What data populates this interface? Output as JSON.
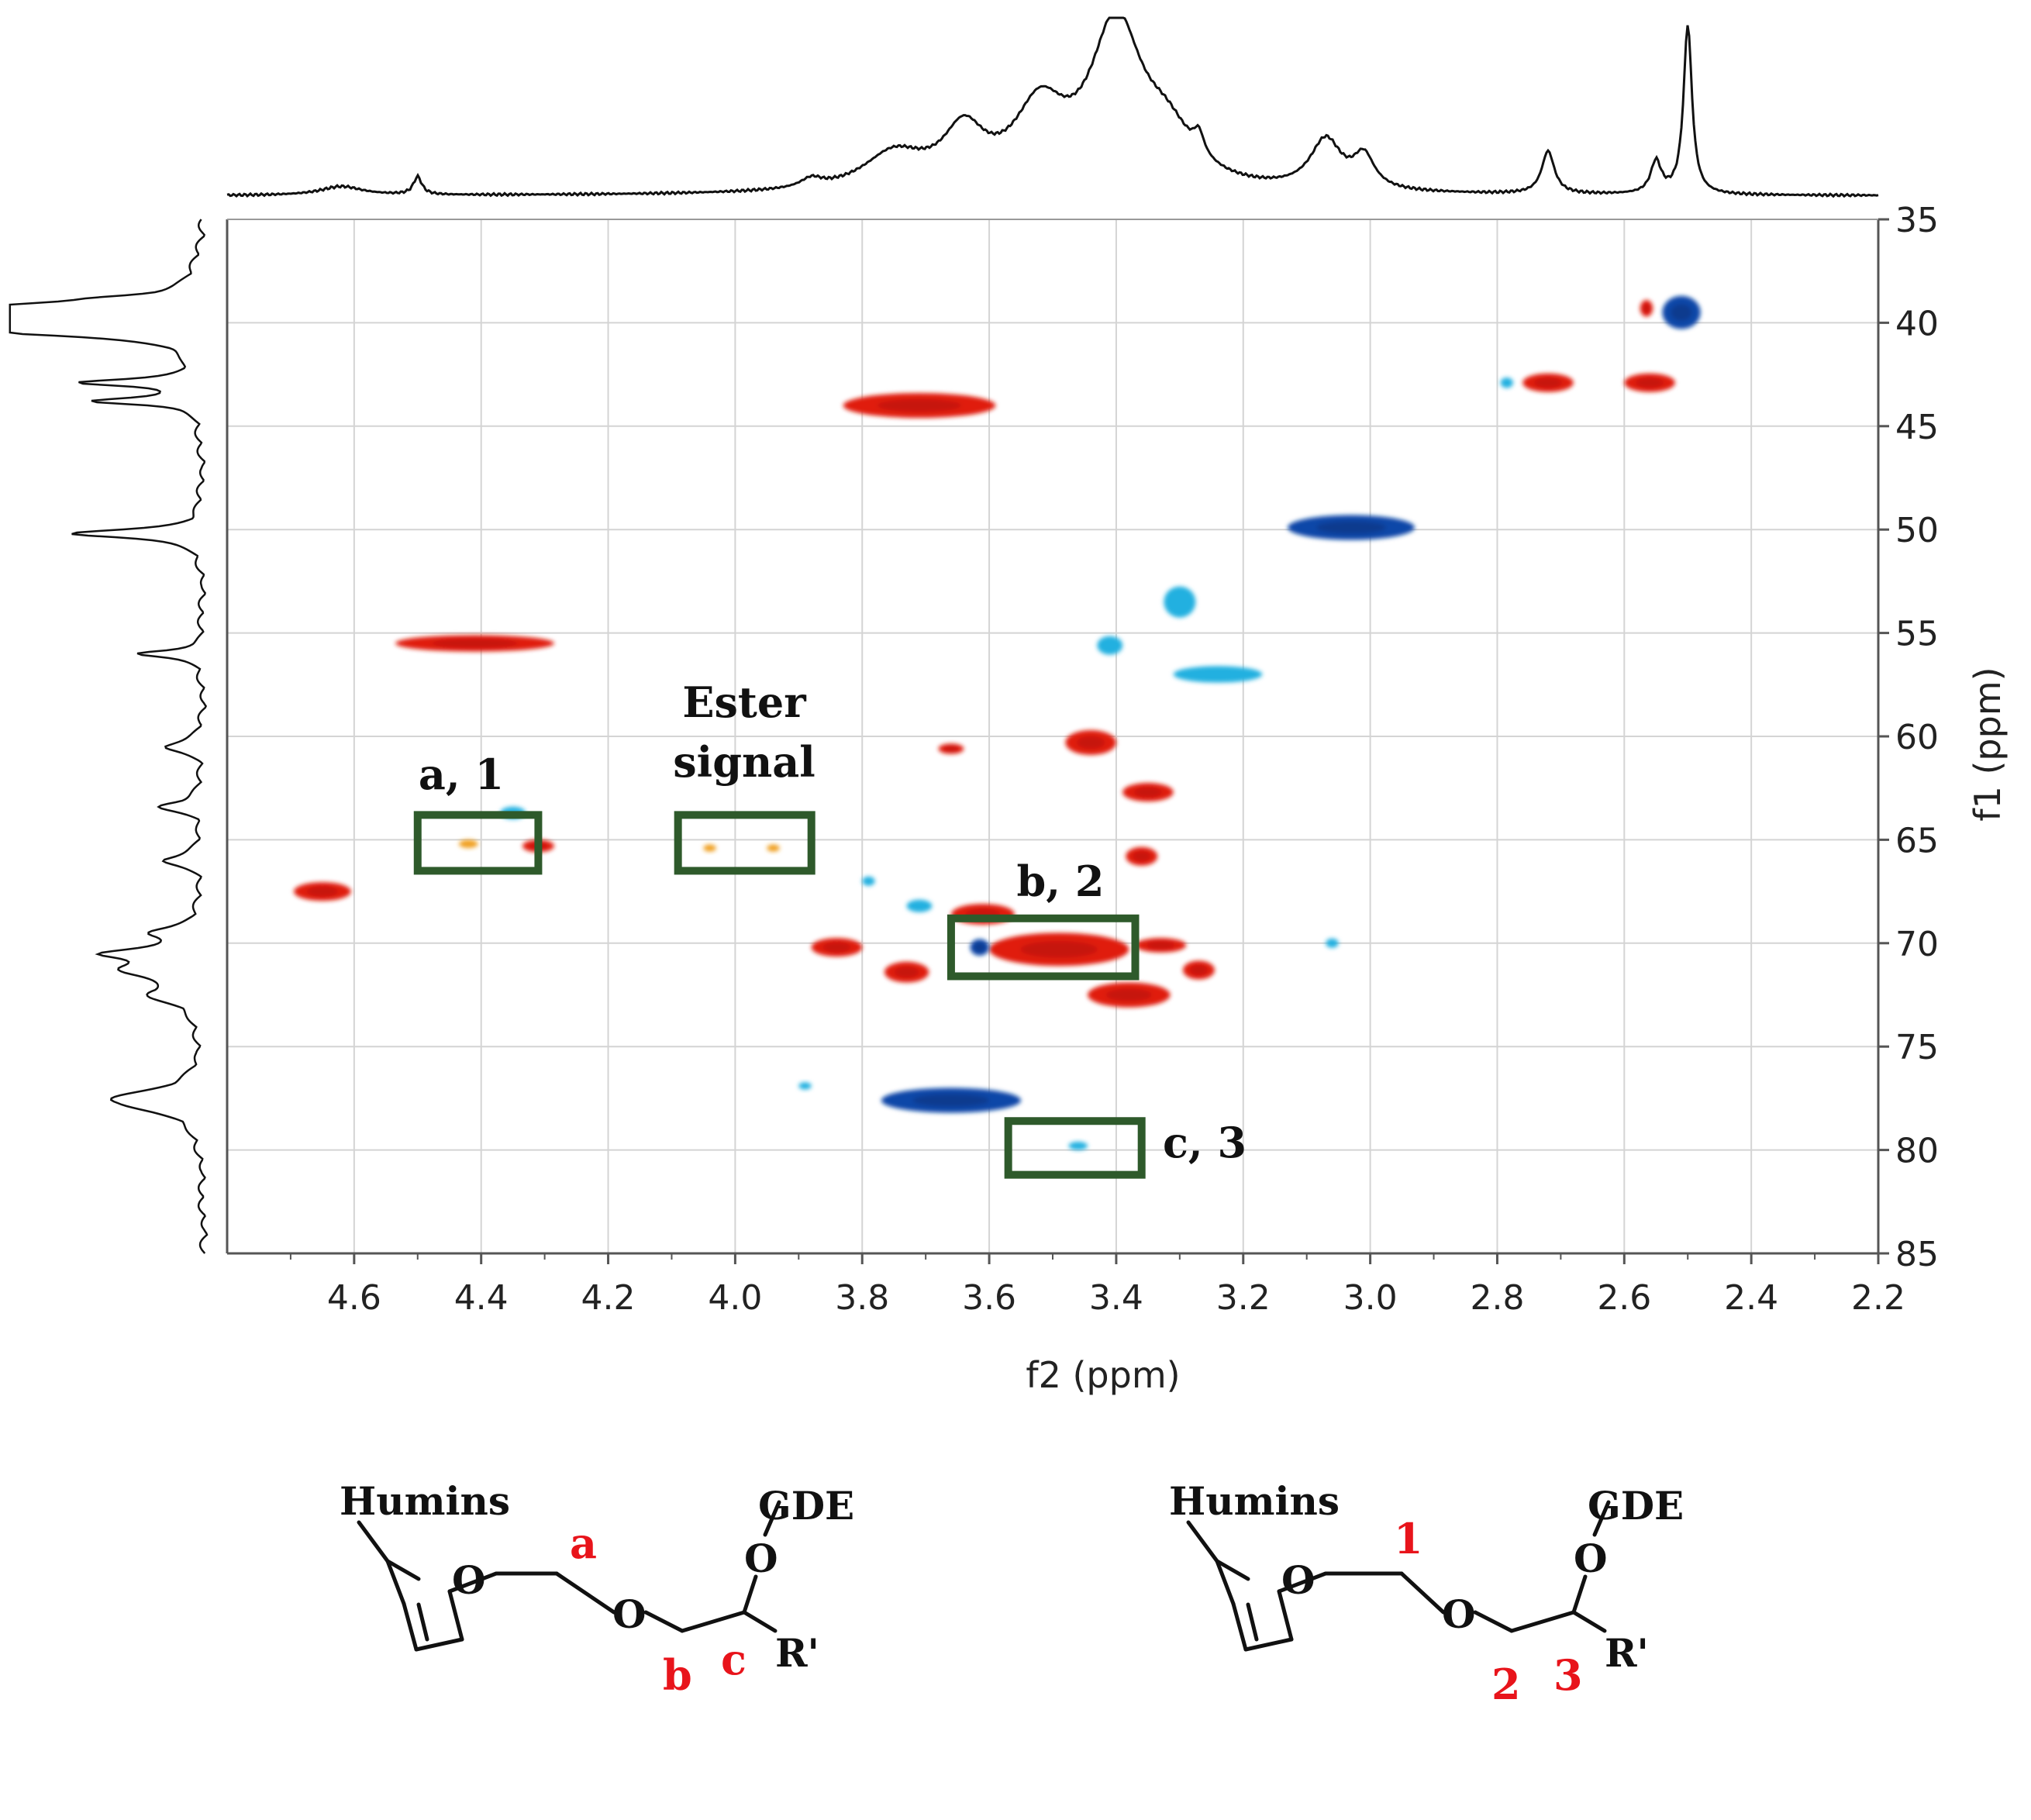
{
  "chart_data": {
    "type": "heatmap",
    "subtype": "2D HSQC NMR spectrum",
    "xlabel": "f2 (ppm)",
    "ylabel": "f1 (ppm)",
    "xlim": [
      4.8,
      2.2
    ],
    "ylim": [
      85,
      35
    ],
    "x_ticks": [
      "4.6",
      "4.4",
      "4.2",
      "4.0",
      "3.8",
      "3.6",
      "3.4",
      "3.2",
      "3.0",
      "2.8",
      "2.6",
      "2.4",
      "2.2"
    ],
    "y_ticks": [
      "35",
      "40",
      "45",
      "50",
      "55",
      "60",
      "65",
      "70",
      "75",
      "80",
      "85"
    ],
    "grid": true,
    "colors": {
      "positive": "#e01a0d",
      "positive_weak": "#f0a020",
      "negative": "#0a47a8",
      "negative_weak": "#20b0e0",
      "box": "#2e5a2b",
      "label_red": "#e8141b"
    },
    "cross_peaks": [
      {
        "x": 2.51,
        "y": 39.5,
        "w": 0.06,
        "h": 1.6,
        "sign": "negative"
      },
      {
        "x": 2.565,
        "y": 39.3,
        "w": 0.02,
        "h": 0.8,
        "sign": "positive"
      },
      {
        "x": 2.785,
        "y": 42.9,
        "w": 0.02,
        "h": 0.5,
        "sign": "negative_weak"
      },
      {
        "x": 2.72,
        "y": 42.9,
        "w": 0.08,
        "h": 0.9,
        "sign": "positive"
      },
      {
        "x": 2.56,
        "y": 42.9,
        "w": 0.08,
        "h": 0.9,
        "sign": "positive"
      },
      {
        "x": 3.71,
        "y": 44.0,
        "w": 0.24,
        "h": 1.2,
        "sign": "positive"
      },
      {
        "x": 3.03,
        "y": 49.9,
        "w": 0.2,
        "h": 1.2,
        "sign": "negative"
      },
      {
        "x": 3.3,
        "y": 53.5,
        "w": 0.05,
        "h": 1.5,
        "sign": "negative_weak"
      },
      {
        "x": 3.41,
        "y": 55.6,
        "w": 0.04,
        "h": 0.9,
        "sign": "negative_weak"
      },
      {
        "x": 3.24,
        "y": 57.0,
        "w": 0.14,
        "h": 0.8,
        "sign": "negative_weak"
      },
      {
        "x": 4.41,
        "y": 55.5,
        "w": 0.25,
        "h": 0.8,
        "sign": "positive"
      },
      {
        "x": 4.35,
        "y": 63.7,
        "w": 0.04,
        "h": 0.6,
        "sign": "negative_weak"
      },
      {
        "x": 4.42,
        "y": 65.2,
        "w": 0.03,
        "h": 0.4,
        "sign": "positive_weak"
      },
      {
        "x": 4.31,
        "y": 65.3,
        "w": 0.05,
        "h": 0.6,
        "sign": "positive"
      },
      {
        "x": 4.04,
        "y": 65.4,
        "w": 0.02,
        "h": 0.35,
        "sign": "positive_weak"
      },
      {
        "x": 3.94,
        "y": 65.4,
        "w": 0.02,
        "h": 0.35,
        "sign": "positive_weak"
      },
      {
        "x": 4.65,
        "y": 67.5,
        "w": 0.09,
        "h": 0.9,
        "sign": "positive"
      },
      {
        "x": 3.66,
        "y": 60.6,
        "w": 0.04,
        "h": 0.5,
        "sign": "positive"
      },
      {
        "x": 3.44,
        "y": 60.3,
        "w": 0.08,
        "h": 1.2,
        "sign": "positive"
      },
      {
        "x": 3.35,
        "y": 62.7,
        "w": 0.08,
        "h": 0.9,
        "sign": "positive"
      },
      {
        "x": 3.36,
        "y": 65.8,
        "w": 0.05,
        "h": 0.9,
        "sign": "positive"
      },
      {
        "x": 3.79,
        "y": 67.0,
        "w": 0.02,
        "h": 0.45,
        "sign": "negative_weak"
      },
      {
        "x": 3.71,
        "y": 68.2,
        "w": 0.04,
        "h": 0.6,
        "sign": "negative_weak"
      },
      {
        "x": 3.61,
        "y": 68.6,
        "w": 0.1,
        "h": 1.0,
        "sign": "positive"
      },
      {
        "x": 3.84,
        "y": 70.2,
        "w": 0.08,
        "h": 0.9,
        "sign": "positive"
      },
      {
        "x": 3.73,
        "y": 71.4,
        "w": 0.07,
        "h": 1.0,
        "sign": "positive"
      },
      {
        "x": 3.49,
        "y": 70.3,
        "w": 0.22,
        "h": 1.6,
        "sign": "positive"
      },
      {
        "x": 3.615,
        "y": 70.2,
        "w": 0.03,
        "h": 0.8,
        "sign": "negative"
      },
      {
        "x": 3.33,
        "y": 70.1,
        "w": 0.08,
        "h": 0.7,
        "sign": "positive"
      },
      {
        "x": 3.27,
        "y": 71.3,
        "w": 0.05,
        "h": 0.9,
        "sign": "positive"
      },
      {
        "x": 3.38,
        "y": 72.5,
        "w": 0.13,
        "h": 1.2,
        "sign": "positive"
      },
      {
        "x": 3.06,
        "y": 70.0,
        "w": 0.02,
        "h": 0.45,
        "sign": "negative_weak"
      },
      {
        "x": 3.89,
        "y": 76.9,
        "w": 0.02,
        "h": 0.35,
        "sign": "negative_weak"
      },
      {
        "x": 3.66,
        "y": 77.6,
        "w": 0.22,
        "h": 1.2,
        "sign": "negative"
      },
      {
        "x": 3.46,
        "y": 79.8,
        "w": 0.03,
        "h": 0.4,
        "sign": "negative_weak"
      }
    ],
    "highlight_boxes": [
      {
        "label": "a, 1",
        "x_range": [
          4.5,
          4.31
        ],
        "y_range": [
          63.8,
          66.5
        ],
        "label_position": "top"
      },
      {
        "label_lines": [
          "Ester",
          "signal"
        ],
        "x_range": [
          4.09,
          3.88
        ],
        "y_range": [
          63.8,
          66.5
        ],
        "label_position": "top"
      },
      {
        "label": "b, 2",
        "x_range": [
          3.66,
          3.37
        ],
        "y_range": [
          68.8,
          71.6
        ],
        "label_position": "top"
      },
      {
        "label": "c, 3",
        "x_range": [
          3.57,
          3.36
        ],
        "y_range": [
          78.6,
          81.2
        ],
        "label_position": "right"
      }
    ],
    "projection_f2_peaks": [
      {
        "ppm": 4.62,
        "height": 0.05,
        "width": 0.04
      },
      {
        "ppm": 4.5,
        "height": 0.1,
        "width": 0.008
      },
      {
        "ppm": 3.88,
        "height": 0.05,
        "width": 0.02
      },
      {
        "ppm": 3.75,
        "height": 0.2,
        "width": 0.06
      },
      {
        "ppm": 3.64,
        "height": 0.3,
        "width": 0.04
      },
      {
        "ppm": 3.52,
        "height": 0.42,
        "width": 0.05
      },
      {
        "ppm": 3.4,
        "height": 0.9,
        "width": 0.05
      },
      {
        "ppm": 3.32,
        "height": 0.25,
        "width": 0.05
      },
      {
        "ppm": 3.27,
        "height": 0.12,
        "width": 0.01
      },
      {
        "ppm": 3.07,
        "height": 0.28,
        "width": 0.03
      },
      {
        "ppm": 3.01,
        "height": 0.18,
        "width": 0.02
      },
      {
        "ppm": 2.72,
        "height": 0.24,
        "width": 0.012
      },
      {
        "ppm": 2.55,
        "height": 0.18,
        "width": 0.01
      },
      {
        "ppm": 2.5,
        "height": 0.95,
        "width": 0.008
      }
    ],
    "projection_f1_peaks": [
      {
        "ppm": 38.8,
        "height": 0.15,
        "width": 0.15
      },
      {
        "ppm": 39.3,
        "height": 1.0,
        "width": 0.35
      },
      {
        "ppm": 39.9,
        "height": 0.98,
        "width": 0.35
      },
      {
        "ppm": 40.4,
        "height": 0.8,
        "width": 0.3
      },
      {
        "ppm": 42.9,
        "height": 0.6,
        "width": 0.2
      },
      {
        "ppm": 43.8,
        "height": 0.55,
        "width": 0.2
      },
      {
        "ppm": 50.2,
        "height": 0.7,
        "width": 0.25
      },
      {
        "ppm": 56.0,
        "height": 0.35,
        "width": 0.2
      },
      {
        "ppm": 60.5,
        "height": 0.2,
        "width": 0.3
      },
      {
        "ppm": 63.4,
        "height": 0.22,
        "width": 0.3
      },
      {
        "ppm": 66.0,
        "height": 0.2,
        "width": 0.3
      },
      {
        "ppm": 69.5,
        "height": 0.25,
        "width": 0.3
      },
      {
        "ppm": 70.5,
        "height": 0.45,
        "width": 0.3
      },
      {
        "ppm": 71.3,
        "height": 0.35,
        "width": 0.4
      },
      {
        "ppm": 72.5,
        "height": 0.25,
        "width": 0.5
      },
      {
        "ppm": 77.5,
        "height": 0.3,
        "width": 0.5
      },
      {
        "ppm": 77.8,
        "height": 0.22,
        "width": 0.6
      }
    ]
  },
  "structures": [
    {
      "substituent_top": "Humins",
      "heteroatom_ring": "O",
      "heteroatom_ether": "O",
      "heteroatom_top": "O",
      "group_top": "GDE",
      "group_side": "R'",
      "label_1": "a",
      "label_2": "b",
      "label_3": "c"
    },
    {
      "substituent_top": "Humins",
      "heteroatom_ring": "O",
      "heteroatom_ether": "O",
      "heteroatom_top": "O",
      "group_top": "GDE",
      "group_side": "R'",
      "label_1": "1",
      "label_2": "2",
      "label_3": "3"
    }
  ]
}
